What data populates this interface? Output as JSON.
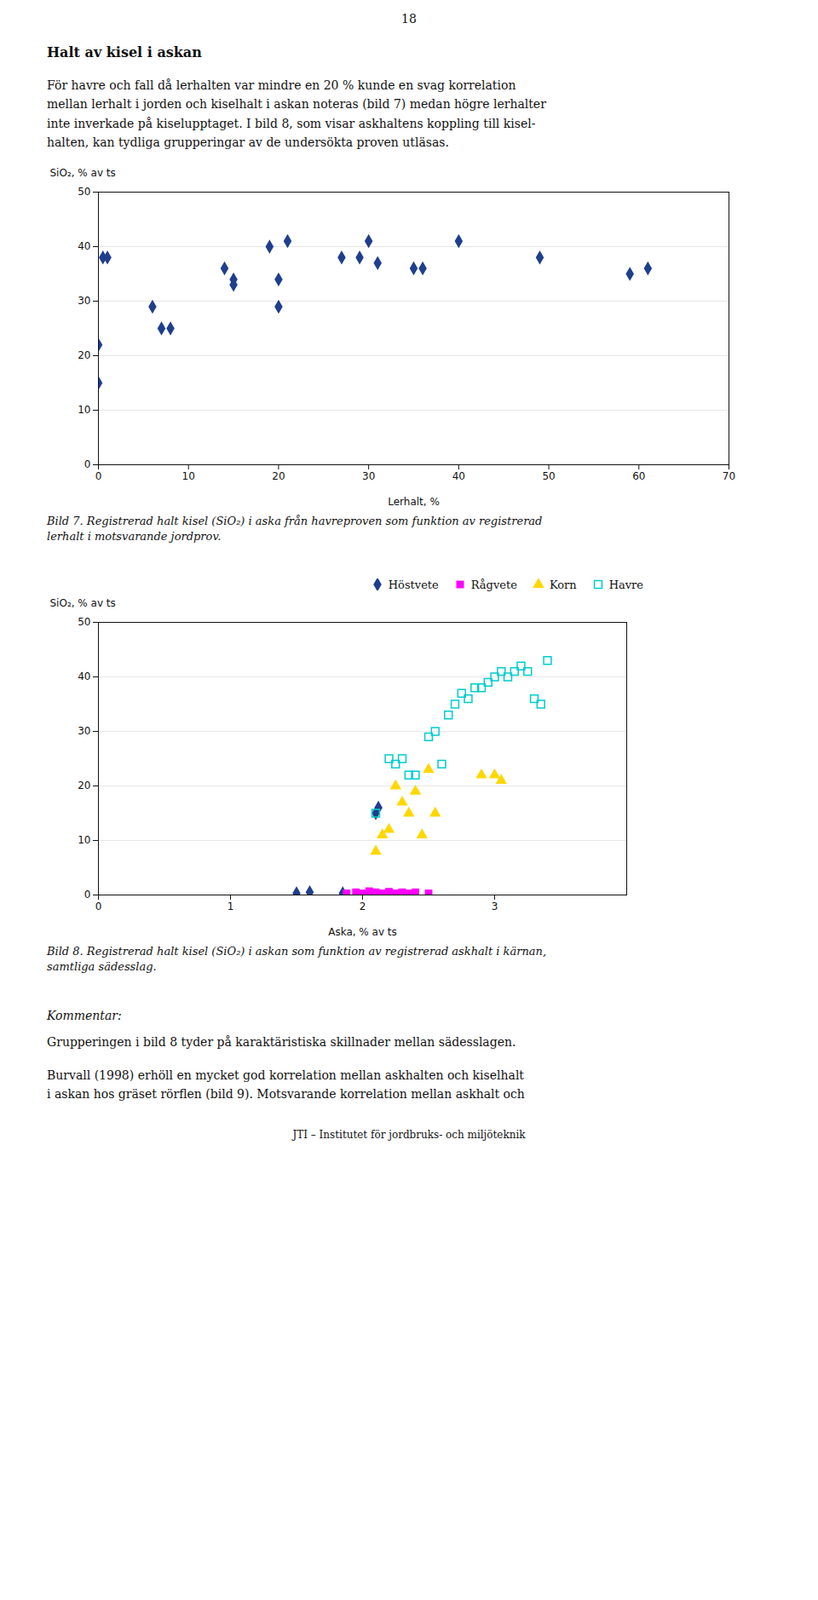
{
  "page_number": "18",
  "heading": "Halt av kisel i askan",
  "intro": [
    "För havre och fall då lerhalten var mindre en 20 % kunde en svag korrelation",
    "mellan lerhalt i jorden och kiselhalt i askan noteras (bild 7) medan högre lerhalter",
    "inte inverkade på kiselupptaget. I bild 8, som visar askhaltens koppling till kisel-",
    "halten, kan tydliga grupperingar av de undersökta proven utläsas."
  ],
  "chart_data": [
    {
      "type": "scatter",
      "xlabel": "Lerhalt, %",
      "ylabel": "SiO₂, % av ts",
      "xlim": [
        0,
        70
      ],
      "ylim": [
        0,
        50
      ],
      "xticks": [
        0,
        10,
        20,
        30,
        40,
        50,
        60,
        70
      ],
      "yticks": [
        0,
        10,
        20,
        30,
        40,
        50
      ],
      "grid": "y",
      "color": "#1F3E8C",
      "marker": "diamond",
      "x": [
        0,
        0,
        0.5,
        1,
        6,
        7,
        8,
        14,
        15,
        15,
        19,
        20,
        20,
        21,
        27,
        29,
        30,
        31,
        35,
        36,
        40,
        49,
        59,
        61
      ],
      "values": [
        15,
        22,
        38,
        38,
        29,
        25,
        25,
        36,
        34,
        33,
        40,
        34,
        29,
        41,
        38,
        38,
        41,
        37,
        36,
        36,
        41,
        38,
        35,
        36
      ],
      "caption": [
        "Bild 7. Registrerad halt kisel (SiO₂) i aska från havreproven som funktion av registrerad",
        "lerhalt i motsvarande jordprov."
      ]
    },
    {
      "type": "scatter",
      "xlabel": "Aska, % av ts",
      "ylabel": "SiO₂, % av ts",
      "xlim": [
        0,
        4
      ],
      "ylim": [
        0,
        50
      ],
      "xticks": [
        0,
        1,
        2,
        3
      ],
      "yticks": [
        0,
        10,
        20,
        30,
        40,
        50
      ],
      "grid": "y",
      "legend": "upper right",
      "series": [
        {
          "name": "Höstvete",
          "color": "#1F3E8C",
          "marker": "diamond",
          "x": [
            1.5,
            1.6,
            1.85,
            2.1,
            2.12
          ],
          "values": [
            0.3,
            0.5,
            0.3,
            15,
            16
          ]
        },
        {
          "name": "Rågvete",
          "color": "#FF00FF",
          "marker": "square",
          "x": [
            1.88,
            1.95,
            2.0,
            2.05,
            2.1,
            2.15,
            2.2,
            2.25,
            2.3,
            2.35,
            2.4,
            2.5
          ],
          "values": [
            0.3,
            0.5,
            0.3,
            0.7,
            0.5,
            0.3,
            0.6,
            0.3,
            0.5,
            0.3,
            0.5,
            0.3
          ]
        },
        {
          "name": "Korn",
          "color": "#FFD700",
          "marker": "triangle",
          "x": [
            2.1,
            2.15,
            2.2,
            2.25,
            2.3,
            2.35,
            2.4,
            2.45,
            2.5,
            2.55,
            2.9,
            3.0,
            3.05
          ],
          "values": [
            8,
            11,
            12,
            20,
            17,
            15,
            19,
            11,
            23,
            15,
            22,
            22,
            21
          ]
        },
        {
          "name": "Havre",
          "color": "#00CCCC",
          "marker": "open-square",
          "x": [
            2.1,
            2.2,
            2.25,
            2.3,
            2.35,
            2.4,
            2.5,
            2.55,
            2.6,
            2.65,
            2.7,
            2.75,
            2.8,
            2.85,
            2.9,
            2.95,
            3.0,
            3.05,
            3.1,
            3.15,
            3.2,
            3.25,
            3.3,
            3.35,
            3.4
          ],
          "values": [
            15,
            25,
            24,
            25,
            22,
            22,
            29,
            30,
            24,
            33,
            35,
            37,
            36,
            38,
            38,
            39,
            40,
            41,
            40,
            41,
            42,
            41,
            36,
            35,
            43
          ]
        }
      ],
      "caption": [
        "Bild 8. Registrerad halt kisel (SiO₂) i askan som funktion av registrerad askhalt i kärnan,",
        "samtliga sädesslag."
      ]
    }
  ],
  "comment_heading": "Kommentar:",
  "comment": [
    "Grupperingen i bild 8 tyder på karaktäristiska skillnader mellan sädesslagen."
  ],
  "closing": [
    "Burvall (1998) erhöll en mycket god korrelation mellan askhalten och kiselhalt",
    "i askan hos gräset rörflen (bild 9). Motsvarande korrelation mellan askhalt och"
  ],
  "footer": "JTI – Institutet för jordbruks- och miljöteknik"
}
